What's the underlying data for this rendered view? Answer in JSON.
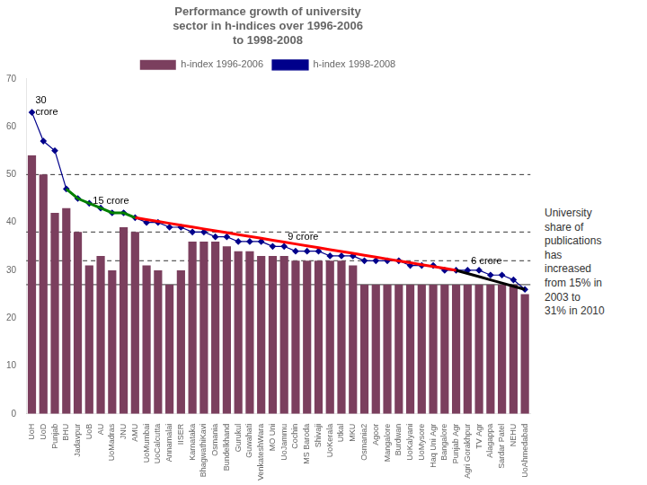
{
  "chart_data": {
    "type": "bar",
    "title": "Performance growth of university\nsector in h-indices over 1996-2006\nto 1998-2008",
    "categories": [
      "UoH",
      "UoD",
      "Punjab",
      "BHU",
      "Jadavpur",
      "UoB",
      "AU",
      "UoMadras",
      "JNU",
      "AMU",
      "UoMumbai",
      "UoCalcutta",
      "Annamalai",
      "IISER",
      "Karnataka",
      "BhagwathiKavi",
      "Osmania",
      "Bundelkhand",
      "Gurukul",
      "Guwahati",
      "VenkateshWara",
      "MO Uni",
      "UoJammu",
      "Cochin",
      "MS Baroda",
      "Shivaji",
      "UoKerala",
      "Utkal",
      "MKU",
      "Osmania2",
      "Agoor",
      "Mangalore",
      "Burdwan",
      "UoKalyani",
      "UoMysore",
      "Haq Uni Agr",
      "Bangalore",
      "Punjab Agr",
      "Agri Gorakhpur",
      "TV Agr",
      "Alagappa",
      "Sardar Patel",
      "NEHU",
      "UoAhmedabad"
    ],
    "series": [
      {
        "name": "h-index 1996-2006",
        "type": "bar",
        "color": "#7b3f5e",
        "values": [
          54,
          50,
          42,
          43,
          38,
          31,
          33,
          30,
          39,
          38,
          31,
          30,
          27,
          30,
          36,
          36,
          36,
          35,
          34,
          34,
          33,
          33,
          33,
          32,
          32,
          32,
          32,
          32,
          31,
          27,
          27,
          27,
          27,
          27,
          27,
          27,
          27,
          27,
          27,
          27,
          27,
          27,
          27,
          25
        ]
      },
      {
        "name": "h-index 1998-2008",
        "type": "line",
        "color": "#00008B",
        "marker": "diamond",
        "values": [
          63,
          57,
          55,
          47,
          45,
          44,
          43,
          42,
          42,
          41,
          40,
          40,
          39,
          39,
          38,
          38,
          37,
          37,
          36,
          36,
          36,
          35,
          35,
          34,
          34,
          34,
          33,
          33,
          33,
          32,
          32,
          32,
          32,
          31,
          31,
          31,
          30,
          30,
          30,
          30,
          29,
          29,
          28,
          26
        ]
      },
      {
        "type": "line",
        "color": "#008000",
        "marker": "none",
        "values": [
          null,
          null,
          null,
          47,
          45,
          44,
          43,
          42,
          42,
          41,
          null,
          null,
          null,
          null,
          null,
          null,
          null,
          null,
          null,
          null,
          null,
          null,
          null,
          null,
          null,
          null,
          null,
          null,
          null,
          null,
          null,
          null,
          null,
          null,
          null,
          null,
          null,
          null,
          null,
          null,
          null,
          null,
          null,
          null
        ]
      },
      {
        "type": "line",
        "color": "#FF0000",
        "marker": "none",
        "values": [
          null,
          null,
          null,
          null,
          null,
          null,
          null,
          null,
          null,
          41,
          40.607142857,
          40.214285714,
          39.821428571,
          39.428571429,
          39.035714286,
          38.642857143,
          38.25,
          37.857142857,
          37.464285714,
          37.071428571,
          36.678571429,
          36.285714286,
          35.892857143,
          35.5,
          35.107142857,
          34.714285714,
          34.321428571,
          33.928571429,
          33.535714286,
          33.142857143,
          32.75,
          32.357142857,
          31.964285714,
          31.571428571,
          31.178571429,
          30.785714286,
          30.392857143,
          30,
          null,
          null,
          null,
          null,
          null,
          null
        ]
      },
      {
        "type": "line",
        "color": "#000000",
        "marker": "none",
        "values": [
          null,
          null,
          null,
          null,
          null,
          null,
          null,
          null,
          null,
          null,
          null,
          null,
          null,
          null,
          null,
          null,
          null,
          null,
          null,
          null,
          null,
          null,
          null,
          null,
          null,
          null,
          null,
          null,
          null,
          null,
          null,
          null,
          null,
          null,
          null,
          null,
          null,
          30,
          29.333333333,
          28.666666667,
          28,
          27.333333333,
          26.666666667,
          26
        ]
      }
    ],
    "reference_lines": [
      {
        "value": 50,
        "line_style": "dashed"
      },
      {
        "value": 38,
        "line_style": "dashed"
      },
      {
        "value": 32,
        "line_style": "dashed"
      },
      {
        "value": 27,
        "line_style": "solid"
      }
    ],
    "annotations": [
      {
        "text": "30\ncrore",
        "x": "UoH",
        "y": 62
      },
      {
        "text": "15 crore",
        "x": "UoB",
        "y": 43.5
      },
      {
        "text": "9 crore",
        "x": "UoJammu",
        "y": 36.0
      },
      {
        "text": "6 crore",
        "x": "Agri Gorakhpur",
        "y": 30.8
      }
    ],
    "side_text": "University\nshare of\npublications\nhas\nincreased\nfrom 15% in\n2003 to\n31% in 2010",
    "ylim": [
      0,
      70
    ],
    "yticks": [
      0,
      10,
      20,
      30,
      40,
      50,
      60,
      70
    ],
    "grid": false,
    "legend": "top"
  }
}
